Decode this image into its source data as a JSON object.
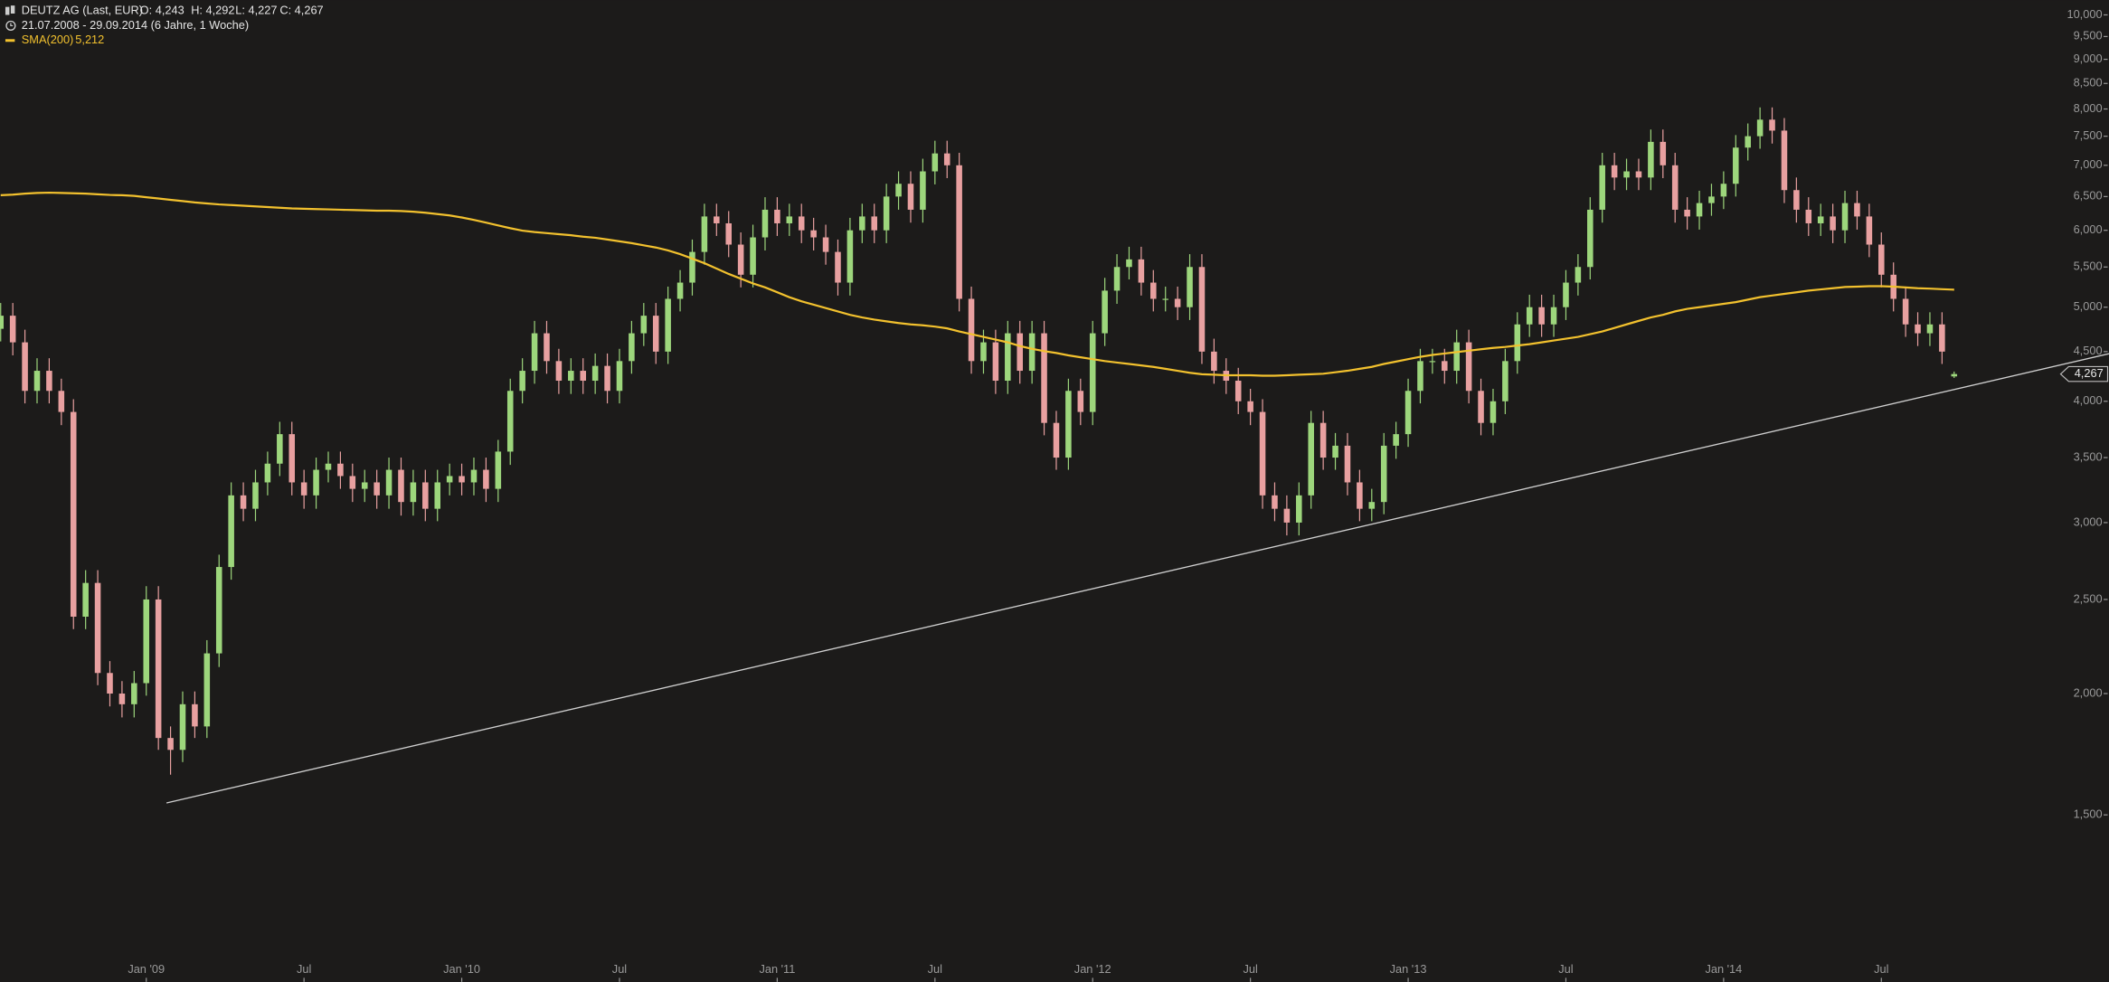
{
  "chart_data": {
    "type": "candlestick",
    "title": "DEUTZ AG (Last, EUR)",
    "ohlc_labels": [
      "O: 4,243",
      "H: 4,292",
      "L: 4,227",
      "C: 4,267"
    ],
    "subtitle": "21.07.2008 - 29.09.2014 (6 Jahre, 1 Woche)",
    "last_label": "4,267",
    "log_scale": true,
    "up_color": "#9dd67c",
    "down_color": "#e8a0a0",
    "categories": [
      null,
      null,
      null,
      null,
      null,
      null,
      null,
      null,
      null,
      null,
      null,
      null,
      "Jan '09",
      null,
      null,
      null,
      null,
      null,
      null,
      null,
      null,
      null,
      null,
      null,
      null,
      "Jul",
      null,
      null,
      null,
      null,
      null,
      null,
      null,
      null,
      null,
      null,
      null,
      null,
      "Jan '10",
      null,
      null,
      null,
      null,
      null,
      null,
      null,
      null,
      null,
      null,
      null,
      null,
      "Jul",
      null,
      null,
      null,
      null,
      null,
      null,
      null,
      null,
      null,
      null,
      null,
      null,
      "Jan '11",
      null,
      null,
      null,
      null,
      null,
      null,
      null,
      null,
      null,
      null,
      null,
      null,
      "Jul",
      null,
      null,
      null,
      null,
      null,
      null,
      null,
      null,
      null,
      null,
      null,
      null,
      "Jan '12",
      null,
      null,
      null,
      null,
      null,
      null,
      null,
      null,
      null,
      null,
      null,
      null,
      "Jul",
      null,
      null,
      null,
      null,
      null,
      null,
      null,
      null,
      null,
      null,
      null,
      null,
      "Jan '13",
      null,
      null,
      null,
      null,
      null,
      null,
      null,
      null,
      null,
      null,
      null,
      null,
      "Jul",
      null,
      null,
      null,
      null,
      null,
      null,
      null,
      null,
      null,
      null,
      null,
      null,
      "Jan '14",
      null,
      null,
      null,
      null,
      null,
      null,
      null,
      null,
      null,
      null,
      null,
      null,
      "Jul",
      null,
      null,
      null,
      null,
      null,
      null
    ],
    "open": [
      4750,
      4900,
      4600,
      4100,
      4300,
      4100,
      3900,
      2400,
      2600,
      2100,
      2000,
      1950,
      2050,
      2500,
      1800,
      1750,
      1950,
      1850,
      2200,
      2700,
      3200,
      3100,
      3300,
      3450,
      3700,
      3300,
      3200,
      3400,
      3450,
      3350,
      3250,
      3300,
      3200,
      3400,
      3150,
      3300,
      3100,
      3300,
      3350,
      3300,
      3400,
      3250,
      3550,
      4100,
      4300,
      4700,
      4400,
      4200,
      4300,
      4200,
      4350,
      4100,
      4400,
      4700,
      4900,
      4500,
      5100,
      5300,
      5700,
      6200,
      6100,
      5800,
      5400,
      5900,
      6300,
      6100,
      6200,
      6000,
      5900,
      5700,
      5300,
      6000,
      6200,
      6000,
      6500,
      6700,
      6300,
      6900,
      7200,
      7000,
      5100,
      4400,
      4600,
      4200,
      4700,
      4300,
      4700,
      3800,
      3500,
      4100,
      3900,
      4700,
      5200,
      5500,
      5600,
      5300,
      5100,
      5100,
      5000,
      5500,
      4500,
      4300,
      4200,
      4000,
      3900,
      3200,
      3100,
      3000,
      3200,
      3800,
      3500,
      3600,
      3300,
      3100,
      3150,
      3600,
      3700,
      4100,
      4400,
      4400,
      4300,
      4600,
      4100,
      3800,
      4000,
      4400,
      4800,
      5000,
      4800,
      5000,
      5300,
      5500,
      6300,
      7000,
      6800,
      6900,
      6800,
      7400,
      7000,
      6300,
      6200,
      6400,
      6500,
      6700,
      7300,
      7500,
      7800,
      7600,
      6600,
      6300,
      6100,
      6200,
      6000,
      6400,
      6200,
      5800,
      5400,
      5100,
      4800,
      4700,
      4800,
      4243
    ],
    "high": [
      5050,
      5050,
      4740,
      4430,
      4430,
      4220,
      4020,
      2680,
      2680,
      2160,
      2060,
      2110,
      2580,
      2580,
      1850,
      2010,
      2010,
      2270,
      2780,
      3300,
      3300,
      3400,
      3550,
      3810,
      3810,
      3400,
      3500,
      3550,
      3550,
      3450,
      3400,
      3400,
      3500,
      3500,
      3400,
      3400,
      3400,
      3450,
      3450,
      3500,
      3500,
      3650,
      4220,
      4430,
      4840,
      4840,
      4530,
      4430,
      4430,
      4480,
      4480,
      4530,
      4840,
      5050,
      5050,
      5250,
      5460,
      5870,
      6390,
      6390,
      6280,
      5970,
      6080,
      6490,
      6490,
      6390,
      6390,
      6180,
      6080,
      5870,
      6180,
      6390,
      6390,
      6700,
      6900,
      6900,
      7110,
      7420,
      7420,
      7210,
      5250,
      4740,
      4740,
      4840,
      4840,
      4840,
      4840,
      3910,
      4220,
      4220,
      4840,
      5360,
      5670,
      5770,
      5770,
      5460,
      5250,
      5250,
      5670,
      5670,
      4640,
      4430,
      4330,
      4120,
      4020,
      3300,
      3200,
      3300,
      3910,
      3910,
      3710,
      3710,
      3400,
      3250,
      3710,
      3810,
      4220,
      4530,
      4530,
      4530,
      4740,
      4740,
      4220,
      4120,
      4530,
      4940,
      5150,
      5150,
      5150,
      5460,
      5670,
      6490,
      7210,
      7210,
      7110,
      7110,
      7620,
      7620,
      7210,
      6490,
      6590,
      6700,
      6900,
      7520,
      7730,
      8030,
      8030,
      7830,
      6800,
      6490,
      6390,
      6390,
      6590,
      6590,
      6390,
      5970,
      5560,
      5250,
      4940,
      4940,
      4940,
      4292
    ],
    "low": [
      4610,
      4460,
      3980,
      3980,
      3980,
      3780,
      2330,
      2330,
      2040,
      1940,
      1890,
      1890,
      1990,
      1750,
      1650,
      1700,
      1800,
      1800,
      2130,
      2620,
      3010,
      3010,
      3200,
      3350,
      3200,
      3100,
      3100,
      3300,
      3250,
      3150,
      3150,
      3100,
      3100,
      3050,
      3050,
      3010,
      3010,
      3200,
      3200,
      3200,
      3150,
      3150,
      3440,
      3980,
      4170,
      4270,
      4070,
      4070,
      4070,
      4070,
      3980,
      3980,
      4270,
      4560,
      4370,
      4370,
      4950,
      5140,
      5530,
      5920,
      5630,
      5240,
      5240,
      5720,
      5920,
      5920,
      5820,
      5720,
      5530,
      5140,
      5140,
      5820,
      5820,
      5820,
      6300,
      6110,
      6110,
      6690,
      6790,
      4950,
      4270,
      4270,
      4070,
      4070,
      4170,
      4170,
      3690,
      3400,
      3400,
      3780,
      3780,
      4560,
      5040,
      5340,
      5140,
      4950,
      4950,
      4850,
      4850,
      4370,
      4170,
      4070,
      3880,
      3780,
      3100,
      3010,
      2910,
      2910,
      3100,
      3400,
      3400,
      3200,
      3010,
      3010,
      3060,
      3490,
      3590,
      3980,
      4270,
      4170,
      4170,
      3980,
      3690,
      3690,
      3880,
      4270,
      4660,
      4660,
      4660,
      4850,
      5140,
      5340,
      6110,
      6600,
      6600,
      6600,
      6600,
      6790,
      6110,
      6010,
      6010,
      6210,
      6310,
      6500,
      7080,
      7280,
      7370,
      6400,
      6110,
      5920,
      5920,
      5820,
      5820,
      6010,
      5630,
      5240,
      4950,
      4660,
      4560,
      4560,
      4370,
      4227
    ],
    "close": [
      4900,
      4600,
      4100,
      4300,
      4100,
      3900,
      2400,
      2600,
      2100,
      2000,
      1950,
      2050,
      2500,
      1800,
      1750,
      1950,
      1850,
      2200,
      2700,
      3200,
      3100,
      3300,
      3450,
      3700,
      3300,
      3200,
      3400,
      3450,
      3350,
      3250,
      3300,
      3200,
      3400,
      3150,
      3300,
      3100,
      3300,
      3350,
      3300,
      3400,
      3250,
      3550,
      4100,
      4300,
      4700,
      4400,
      4200,
      4300,
      4200,
      4350,
      4100,
      4400,
      4700,
      4900,
      4500,
      5100,
      5300,
      5700,
      6200,
      6100,
      5800,
      5400,
      5900,
      6300,
      6100,
      6200,
      6000,
      5900,
      5700,
      5300,
      6000,
      6200,
      6000,
      6500,
      6700,
      6300,
      6900,
      7200,
      7000,
      5100,
      4400,
      4600,
      4200,
      4700,
      4300,
      4700,
      3800,
      3500,
      4100,
      3900,
      4700,
      5200,
      5500,
      5600,
      5300,
      5100,
      5100,
      5000,
      5500,
      4500,
      4300,
      4200,
      4000,
      3900,
      3200,
      3100,
      3000,
      3200,
      3800,
      3500,
      3600,
      3300,
      3100,
      3150,
      3600,
      3700,
      4100,
      4400,
      4400,
      4300,
      4600,
      4100,
      3800,
      4000,
      4400,
      4800,
      5000,
      4800,
      5000,
      5300,
      5500,
      6300,
      7000,
      6800,
      6900,
      6800,
      7400,
      7000,
      6300,
      6200,
      6400,
      6500,
      6700,
      7300,
      7500,
      7800,
      7600,
      6600,
      6300,
      6100,
      6200,
      6000,
      6400,
      6200,
      5800,
      5400,
      5100,
      4800,
      4700,
      4800,
      4500,
      4267
    ],
    "sma": {
      "name": "SMA(200)",
      "value_label": "5,212",
      "color": "#f2c12e",
      "values": [
        6520,
        6530,
        6545,
        6555,
        6560,
        6555,
        6550,
        6545,
        6535,
        6525,
        6520,
        6510,
        6490,
        6470,
        6450,
        6430,
        6410,
        6395,
        6380,
        6370,
        6360,
        6350,
        6340,
        6330,
        6320,
        6315,
        6310,
        6305,
        6300,
        6295,
        6290,
        6285,
        6285,
        6280,
        6270,
        6255,
        6235,
        6215,
        6185,
        6150,
        6110,
        6070,
        6030,
        5995,
        5975,
        5960,
        5945,
        5930,
        5910,
        5895,
        5870,
        5845,
        5820,
        5790,
        5760,
        5720,
        5670,
        5610,
        5550,
        5480,
        5410,
        5350,
        5290,
        5240,
        5180,
        5120,
        5070,
        5030,
        4990,
        4950,
        4910,
        4880,
        4855,
        4835,
        4815,
        4800,
        4790,
        4775,
        4755,
        4720,
        4690,
        4660,
        4630,
        4600,
        4560,
        4530,
        4505,
        4485,
        4460,
        4440,
        4420,
        4400,
        4385,
        4370,
        4355,
        4340,
        4320,
        4300,
        4280,
        4265,
        4260,
        4255,
        4255,
        4255,
        4250,
        4250,
        4255,
        4260,
        4265,
        4270,
        4285,
        4300,
        4320,
        4340,
        4370,
        4395,
        4420,
        4445,
        4465,
        4480,
        4495,
        4510,
        4525,
        4540,
        4550,
        4565,
        4580,
        4600,
        4620,
        4640,
        4660,
        4690,
        4720,
        4760,
        4800,
        4840,
        4880,
        4910,
        4950,
        4980,
        5000,
        5020,
        5040,
        5060,
        5090,
        5120,
        5140,
        5160,
        5180,
        5200,
        5215,
        5230,
        5245,
        5250,
        5255,
        5255,
        5250,
        5240,
        5230,
        5225,
        5218,
        5212
      ]
    },
    "trendline": {
      "color": "#cfcfcf",
      "values": [
        1543,
        4478
      ]
    },
    "ylim": [
      1076,
      10356
    ],
    "yticks": [
      {
        "value": 1500,
        "label": "1,500"
      },
      {
        "value": 2000,
        "label": "2,000"
      },
      {
        "value": 2500,
        "label": "2,500"
      },
      {
        "value": 3000,
        "label": "3,000"
      },
      {
        "value": 3500,
        "label": "3,500"
      },
      {
        "value": 4000,
        "label": "4,000"
      },
      {
        "value": 4500,
        "label": "4,500"
      },
      {
        "value": 5000,
        "label": "5,000"
      },
      {
        "value": 5500,
        "label": "5,500"
      },
      {
        "value": 6000,
        "label": "6,000"
      },
      {
        "value": 6500,
        "label": "6,500"
      },
      {
        "value": 7000,
        "label": "7,000"
      },
      {
        "value": 7500,
        "label": "7,500"
      },
      {
        "value": 8000,
        "label": "8,000"
      },
      {
        "value": 8500,
        "label": "8,500"
      },
      {
        "value": 9000,
        "label": "9,000"
      },
      {
        "value": 9500,
        "label": "9,500"
      },
      {
        "value": 10000,
        "label": "10,000"
      }
    ]
  }
}
